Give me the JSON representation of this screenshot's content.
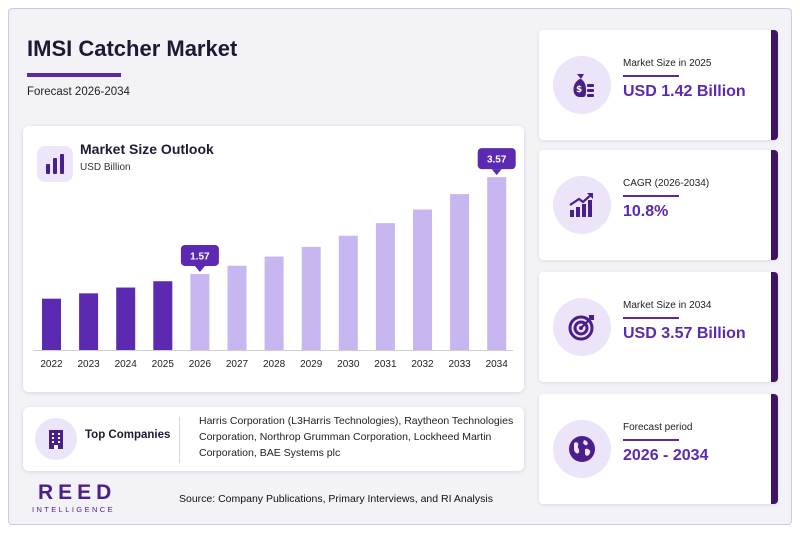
{
  "title": "IMSI Catcher Market",
  "subtitle": "Forecast 2026-2034",
  "chart": {
    "title": "Market Size Outlook",
    "unit": "USD Billion",
    "icon": "bar-chart-icon"
  },
  "chart_data": {
    "type": "bar",
    "title": "Market Size Outlook",
    "ylabel": "USD Billion",
    "categories": [
      "2022",
      "2023",
      "2024",
      "2025",
      "2026",
      "2027",
      "2028",
      "2029",
      "2030",
      "2031",
      "2032",
      "2033",
      "2034"
    ],
    "values": [
      1.06,
      1.17,
      1.29,
      1.42,
      1.57,
      1.74,
      1.93,
      2.13,
      2.36,
      2.62,
      2.9,
      3.22,
      3.57
    ],
    "historical_color": "#5b2ab0",
    "forecast_color": "#c7b6ef",
    "forecast_start": "2026",
    "callouts": [
      {
        "category": "2026",
        "label": "1.57"
      },
      {
        "category": "2034",
        "label": "3.57"
      }
    ],
    "callout_color": "#5b2ab0",
    "ylim": [
      0,
      3.8
    ],
    "grid": false
  },
  "stats": [
    {
      "label": "Market Size in 2025",
      "value": "USD 1.42 Billion",
      "icon": "money-bag-icon"
    },
    {
      "label": "CAGR (2026-2034)",
      "value": "10.8%",
      "icon": "growth-chart-icon"
    },
    {
      "label": "Market Size in 2034",
      "value": "USD 3.57 Billion",
      "icon": "target-icon"
    },
    {
      "label": "Forecast period",
      "value": "2026 - 2034",
      "icon": "globe-icon"
    }
  ],
  "companies": {
    "title": "Top Companies",
    "list": "Harris Corporation (L3Harris Technologies), Raytheon Technologies Corporation, Northrop Grumman Corporation, Lockheed Martin Corporation, BAE Systems plc",
    "icon": "building-icon"
  },
  "logo": {
    "main": "REED",
    "sub": "INTELLIGENCE"
  },
  "source": "Source: Company Publications, Primary Interviews, and RI Analysis"
}
